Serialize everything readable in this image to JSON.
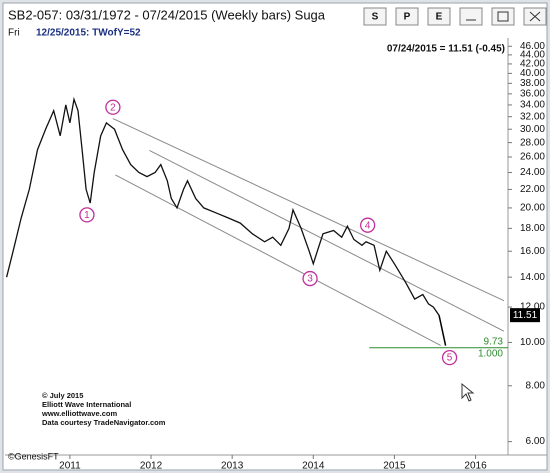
{
  "header": {
    "title": "SB2-057:  03/31/1972 - 07/24/2015  (Weekly bars)  Suga",
    "subtitle_day": "Fri",
    "subtitle": "12/25/2015:  TWofY=52",
    "buttons": [
      "S",
      "P",
      "E"
    ]
  },
  "chart_data": {
    "type": "line",
    "log_scale": true,
    "last_quote": "07/24/2015 = 11.51 (-0.45)",
    "x": [
      2010.22,
      2010.3,
      2010.4,
      2010.5,
      2010.6,
      2010.7,
      2010.8,
      2010.88,
      2010.95,
      2011.0,
      2011.05,
      2011.1,
      2011.15,
      2011.2,
      2011.25,
      2011.3,
      2011.38,
      2011.45,
      2011.55,
      2011.65,
      2011.75,
      2011.85,
      2011.95,
      2012.05,
      2012.12,
      2012.2,
      2012.25,
      2012.32,
      2012.4,
      2012.45,
      2012.55,
      2012.65,
      2012.8,
      2012.95,
      2013.1,
      2013.25,
      2013.4,
      2013.5,
      2013.6,
      2013.7,
      2013.75,
      2013.85,
      2013.95,
      2014.0,
      2014.05,
      2014.12,
      2014.25,
      2014.35,
      2014.42,
      2014.5,
      2014.6,
      2014.65,
      2014.75,
      2014.82,
      2014.9,
      2015.0,
      2015.1,
      2015.15,
      2015.25,
      2015.35,
      2015.42,
      2015.48,
      2015.55
    ],
    "series": [
      {
        "color": "#111111",
        "values": [
          14,
          16,
          19,
          22,
          27,
          30,
          33,
          29,
          34,
          31,
          35,
          33,
          27,
          22,
          20.5,
          24,
          29,
          31,
          30,
          27,
          25,
          24,
          23.5,
          24,
          25,
          23,
          21,
          20,
          22,
          23,
          21,
          20,
          19.5,
          19,
          18.5,
          17.5,
          16.8,
          17.2,
          16.5,
          18,
          19.8,
          18,
          16,
          15,
          16,
          17.5,
          17.8,
          17.2,
          18.2,
          17,
          16.5,
          16.8,
          16.5,
          14.5,
          16,
          15,
          14,
          13.5,
          12.5,
          12.8,
          12.2,
          12.0,
          11.51
        ]
      }
    ],
    "last_price": 11.51,
    "xlim": [
      2010.2,
      2016.4
    ],
    "xticks": [
      2011,
      2012,
      2013,
      2014,
      2015,
      2016
    ],
    "ylim": [
      5.6,
      48
    ],
    "yticks": [
      {
        "value": 46,
        "label": "46.00"
      },
      {
        "value": 44,
        "label": "44.00"
      },
      {
        "value": 42,
        "label": "42.00"
      },
      {
        "value": 40,
        "label": "40.00"
      },
      {
        "value": 38,
        "label": "38.00"
      },
      {
        "value": 36,
        "label": "36.00"
      },
      {
        "value": 34,
        "label": "34.00"
      },
      {
        "value": 32,
        "label": "32.00"
      },
      {
        "value": 30,
        "label": "30.00"
      },
      {
        "value": 28,
        "label": "28.00"
      },
      {
        "value": 26,
        "label": "26.00"
      },
      {
        "value": 24,
        "label": "24.00"
      },
      {
        "value": 22,
        "label": "22.00"
      },
      {
        "value": 20,
        "label": "20.00"
      },
      {
        "value": 18,
        "label": "18.00"
      },
      {
        "value": 16,
        "label": "16.00"
      },
      {
        "value": 14,
        "label": "14.00"
      },
      {
        "value": 12,
        "label": "12.00"
      },
      {
        "value": 10,
        "label": "10.00"
      },
      {
        "value": 8,
        "label": "8.00"
      },
      {
        "value": 6,
        "label": "6.00"
      }
    ],
    "waves": [
      {
        "label": "1",
        "x": 2011.21,
        "y": 19.3
      },
      {
        "label": "2",
        "x": 2011.53,
        "y": 33.6
      },
      {
        "label": "3",
        "x": 2013.96,
        "y": 13.9
      },
      {
        "label": "4",
        "x": 2014.67,
        "y": 18.3
      },
      {
        "label": "5",
        "x": 2015.68,
        "y": 9.25
      }
    ],
    "channel_lines": [
      {
        "x1": 2011.53,
        "y1": 31.7,
        "x2": 2016.35,
        "y2": 12.4
      },
      {
        "x1": 2011.98,
        "y1": 26.9,
        "x2": 2016.35,
        "y2": 10.6
      },
      {
        "x1": 2011.56,
        "y1": 23.7,
        "x2": 2015.57,
        "y2": 9.85
      }
    ],
    "target": {
      "value": 9.73,
      "x_start": 2014.69,
      "ratio_label": "1.000",
      "color": "#2e8b2e"
    },
    "credits": [
      "© July 2015",
      "Elliott Wave International",
      "www.elliottwave.com",
      "Data courtesy TradeNavigator.com"
    ],
    "source": "©GenesisFT"
  }
}
